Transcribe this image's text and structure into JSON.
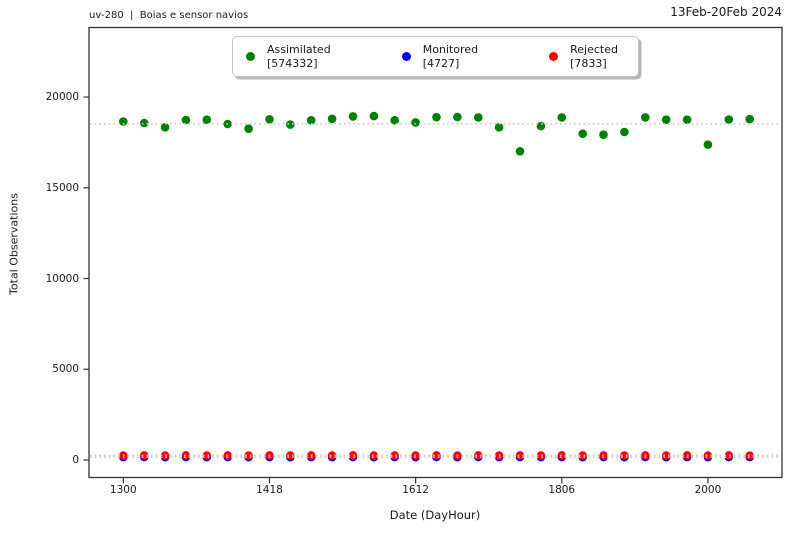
{
  "chart_data": {
    "type": "scatter",
    "title_left": "uv-280  |  Boias e sensor navios",
    "title_right": "13Feb-20Feb 2024",
    "xlabel": "Date (DayHour)",
    "ylabel": "Total Observations",
    "x_tick_labels": [
      "1300",
      "1418",
      "1612",
      "1806",
      "2000"
    ],
    "y_tick_values": [
      0,
      5000,
      10000,
      15000,
      20000
    ],
    "y_axis_range_shown": [
      0,
      20000
    ],
    "grid": "off",
    "legend_position": "top-center-inside",
    "reference_lines": "dotted light-gray line at each series mean",
    "categories": [
      "1300",
      "1306",
      "1312",
      "1318",
      "1400",
      "1406",
      "1412",
      "1418",
      "1500",
      "1506",
      "1512",
      "1518",
      "1600",
      "1606",
      "1612",
      "1618",
      "1700",
      "1706",
      "1712",
      "1718",
      "1800",
      "1806",
      "1812",
      "1818",
      "1900",
      "1906",
      "1912",
      "1918",
      "2000",
      "2006",
      "2012"
    ],
    "series": [
      {
        "name": "Assimilated",
        "total": 574332,
        "count_label": "[574332]",
        "color": "#008000",
        "values": [
          18650,
          18570,
          18330,
          18735,
          18750,
          18515,
          18255,
          18770,
          18480,
          18715,
          18800,
          18930,
          18950,
          18715,
          18600,
          18890,
          18900,
          18880,
          18330,
          17010,
          18400,
          18880,
          17980,
          17925,
          18072,
          18880,
          18750,
          18750,
          17375,
          18760,
          18785
        ]
      },
      {
        "name": "Monitored",
        "total": 4727,
        "count_label": "[4727]",
        "color": "#0000ff",
        "values": [
          148,
          157,
          148,
          157,
          148,
          157,
          148,
          157,
          148,
          157,
          148,
          157,
          148,
          157,
          148,
          157,
          148,
          157,
          148,
          157,
          148,
          157,
          148,
          157,
          148,
          157,
          148,
          157,
          148,
          157,
          152
        ]
      },
      {
        "name": "Rejected",
        "total": 7833,
        "count_label": "[7833]",
        "color": "#ff0000",
        "values": [
          248,
          258,
          248,
          258,
          248,
          258,
          248,
          258,
          248,
          258,
          248,
          258,
          248,
          258,
          248,
          258,
          248,
          258,
          248,
          258,
          248,
          258,
          248,
          258,
          248,
          258,
          248,
          258,
          248,
          258,
          243
        ]
      }
    ]
  }
}
